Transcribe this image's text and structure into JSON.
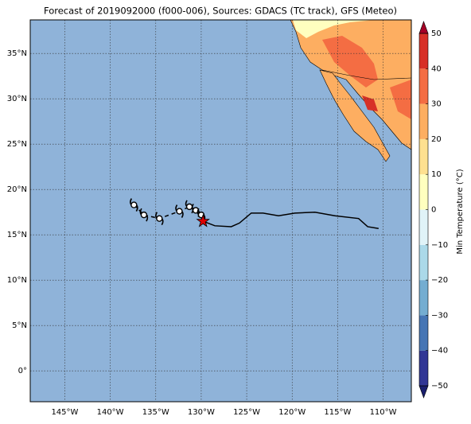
{
  "chart_data": {
    "type": "map",
    "title": "Forecast of 2019092000 (f000-006), Sources: GDACS (TC track), GFS (Meteo)",
    "xlim": [
      -148.8,
      -106.9
    ],
    "ylim": [
      -3.4,
      38.7
    ],
    "xticks": [
      {
        "value": -145,
        "label": "145°W"
      },
      {
        "value": -140,
        "label": "140°W"
      },
      {
        "value": -135,
        "label": "135°W"
      },
      {
        "value": -130,
        "label": "130°W"
      },
      {
        "value": -125,
        "label": "125°W"
      },
      {
        "value": -120,
        "label": "120°W"
      },
      {
        "value": -115,
        "label": "115°W"
      },
      {
        "value": -110,
        "label": "110°W"
      }
    ],
    "yticks": [
      {
        "value": 0,
        "label": "0°"
      },
      {
        "value": 5,
        "label": "5°N"
      },
      {
        "value": 10,
        "label": "10°N"
      },
      {
        "value": 15,
        "label": "15°N"
      },
      {
        "value": 20,
        "label": "20°N"
      },
      {
        "value": 25,
        "label": "25°N"
      },
      {
        "value": 30,
        "label": "30°N"
      },
      {
        "value": 35,
        "label": "35°N"
      }
    ],
    "grid": true,
    "ocean_color": "#8fb3d9",
    "track": {
      "color": "#000000",
      "lon": [
        -129.8,
        -128.5,
        -126.7,
        -125.8,
        -124.5,
        -123.2,
        -121.5,
        -119.7,
        -117.5,
        -115.3,
        -112.7,
        -111.7,
        -110.5
      ],
      "lat": [
        16.5,
        16.0,
        15.9,
        16.3,
        17.4,
        17.4,
        17.1,
        17.4,
        17.5,
        17.1,
        16.8,
        15.9,
        15.7
      ]
    },
    "storms": {
      "lon": [
        -137.4,
        -136.3,
        -134.6,
        -132.4,
        -131.3,
        -130.6,
        -130.0
      ],
      "lat": [
        18.3,
        17.2,
        16.8,
        17.6,
        18.1,
        17.7,
        17.2
      ]
    },
    "star": {
      "lon": -129.8,
      "lat": 16.5,
      "color": "#dd0000"
    },
    "colorbar": {
      "label": "Min Temperature (°C)",
      "lim": [
        -50,
        50
      ],
      "ticks": [
        {
          "value": -50,
          "label": "−50"
        },
        {
          "value": -40,
          "label": "−40"
        },
        {
          "value": -30,
          "label": "−30"
        },
        {
          "value": -20,
          "label": "−20"
        },
        {
          "value": -10,
          "label": "−10"
        },
        0,
        10,
        20,
        30,
        40,
        50
      ],
      "colors": [
        "#313695",
        "#4575b4",
        "#74add1",
        "#abd9e9",
        "#e0f3f8",
        "#ffffbf",
        "#fee090",
        "#fdae61",
        "#f46d43",
        "#d73027"
      ],
      "over": "#a50026",
      "under": "#1a1f6e"
    }
  }
}
